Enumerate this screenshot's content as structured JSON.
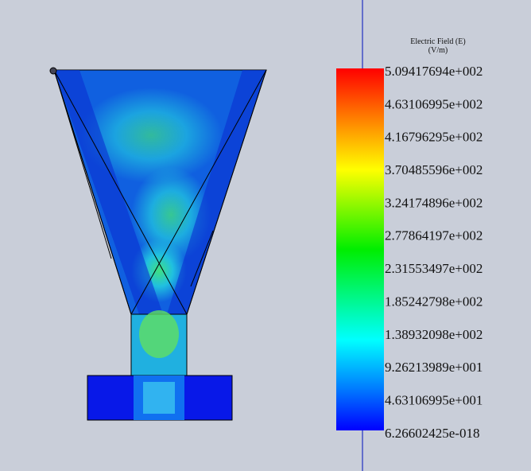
{
  "legend": {
    "title": "Electric Field (E)",
    "unit": "(V/m)",
    "labels": [
      "5.09417694e+002",
      "4.63106995e+002",
      "4.16796295e+002",
      "3.70485596e+002",
      "3.24174896e+002",
      "2.77864197e+002",
      "2.31553497e+002",
      "1.85242798e+002",
      "1.38932098e+002",
      "9.26213989e+001",
      "4.63106995e+001",
      "6.26602425e-018"
    ]
  }
}
